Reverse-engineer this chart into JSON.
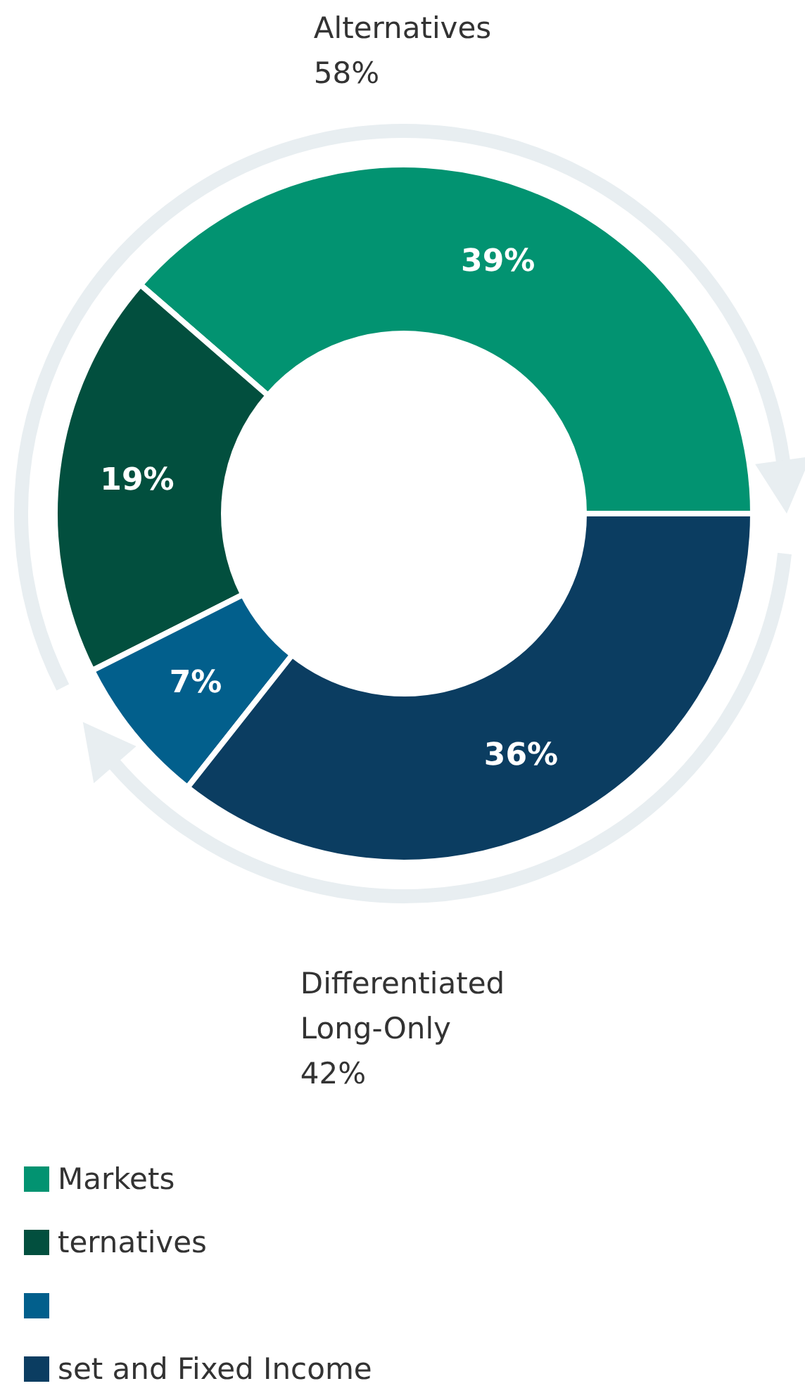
{
  "chart_data": {
    "type": "donut",
    "categories": [
      "Markets",
      "ternatives",
      null,
      "set and Fixed Income"
    ],
    "values": [
      39,
      19,
      7,
      36
    ],
    "value_labels": [
      "39%",
      "19%",
      "7%",
      "36%"
    ],
    "colors": [
      "#029371",
      "#024f3e",
      "#025f8c",
      "#0b3d61"
    ],
    "legend": "bottom left",
    "annotations": [
      "Alternatives\n58%",
      "Differentiated\nLong-Only\n42%"
    ]
  }
}
